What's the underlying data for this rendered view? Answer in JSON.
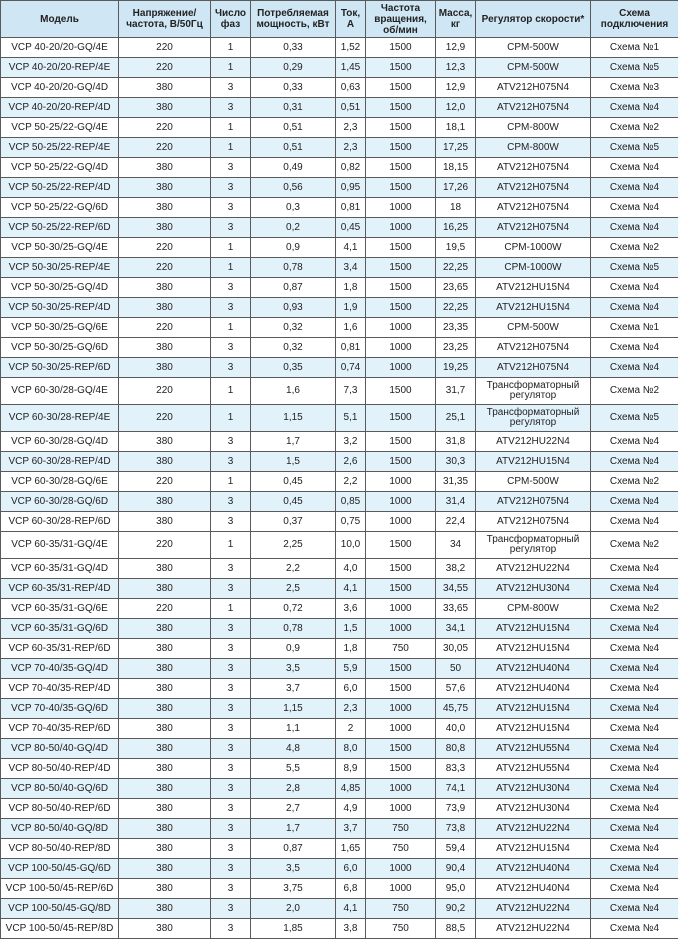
{
  "colors": {
    "header_bg": "#cfe7f5",
    "shaded_row_bg": "#e2f2fb",
    "grid": "#5a5a5a"
  },
  "table": {
    "headers": [
      "Модель",
      "Напряжение/ частота, В/50Гц",
      "Число фаз",
      "Потребляемая мощность, кВт",
      "Ток, А",
      "Частота вращения, об/мин",
      "Масса, кг",
      "Регулятор скорости*",
      "Схема подключения"
    ],
    "rows": [
      {
        "shaded": false,
        "cells": [
          "VCP 40-20/20-GQ/4E",
          "220",
          "1",
          "0,33",
          "1,52",
          "1500",
          "12,9",
          "CPM-500W",
          "Схема №1"
        ]
      },
      {
        "shaded": true,
        "cells": [
          "VCP 40-20/20-REP/4E",
          "220",
          "1",
          "0,29",
          "1,45",
          "1500",
          "12,3",
          "CPM-500W",
          "Схема №5"
        ]
      },
      {
        "shaded": false,
        "cells": [
          "VCP 40-20/20-GQ/4D",
          "380",
          "3",
          "0,33",
          "0,63",
          "1500",
          "12,9",
          "ATV212H075N4",
          "Схема №3"
        ]
      },
      {
        "shaded": true,
        "cells": [
          "VCP 40-20/20-REP/4D",
          "380",
          "3",
          "0,31",
          "0,51",
          "1500",
          "12,0",
          "ATV212H075N4",
          "Схема №4"
        ]
      },
      {
        "shaded": false,
        "cells": [
          "VCP 50-25/22-GQ/4E",
          "220",
          "1",
          "0,51",
          "2,3",
          "1500",
          "18,1",
          "CPM-800W",
          "Схема №2"
        ]
      },
      {
        "shaded": true,
        "cells": [
          "VCP 50-25/22-REP/4E",
          "220",
          "1",
          "0,51",
          "2,3",
          "1500",
          "17,25",
          "CPM-800W",
          "Схема №5"
        ]
      },
      {
        "shaded": false,
        "cells": [
          "VCP 50-25/22-GQ/4D",
          "380",
          "3",
          "0,49",
          "0,82",
          "1500",
          "18,15",
          "ATV212H075N4",
          "Схема №4"
        ]
      },
      {
        "shaded": true,
        "cells": [
          "VCP 50-25/22-REP/4D",
          "380",
          "3",
          "0,56",
          "0,95",
          "1500",
          "17,26",
          "ATV212H075N4",
          "Схема №4"
        ]
      },
      {
        "shaded": false,
        "cells": [
          "VCP 50-25/22-GQ/6D",
          "380",
          "3",
          "0,3",
          "0,81",
          "1000",
          "18",
          "ATV212H075N4",
          "Схема №4"
        ]
      },
      {
        "shaded": true,
        "cells": [
          "VCP 50-25/22-REP/6D",
          "380",
          "3",
          "0,2",
          "0,45",
          "1000",
          "16,25",
          "ATV212H075N4",
          "Схема №4"
        ]
      },
      {
        "shaded": false,
        "cells": [
          "VCP 50-30/25-GQ/4E",
          "220",
          "1",
          "0,9",
          "4,1",
          "1500",
          "19,5",
          "CPM-1000W",
          "Схема №2"
        ]
      },
      {
        "shaded": true,
        "cells": [
          "VCP 50-30/25-REP/4E",
          "220",
          "1",
          "0,78",
          "3,4",
          "1500",
          "22,25",
          "CPM-1000W",
          "Схема №5"
        ]
      },
      {
        "shaded": false,
        "cells": [
          "VCP 50-30/25-GQ/4D",
          "380",
          "3",
          "0,87",
          "1,8",
          "1500",
          "23,65",
          "ATV212HU15N4",
          "Схема №4"
        ]
      },
      {
        "shaded": true,
        "cells": [
          "VCP 50-30/25-REP/4D",
          "380",
          "3",
          "0,93",
          "1,9",
          "1500",
          "22,25",
          "ATV212HU15N4",
          "Схема №4"
        ]
      },
      {
        "shaded": false,
        "cells": [
          "VCP 50-30/25-GQ/6E",
          "220",
          "1",
          "0,32",
          "1,6",
          "1000",
          "23,35",
          "CPM-500W",
          "Схема №1"
        ]
      },
      {
        "shaded": false,
        "cells": [
          "VCP 50-30/25-GQ/6D",
          "380",
          "3",
          "0,32",
          "0,81",
          "1000",
          "23,25",
          "ATV212H075N4",
          "Схема №4"
        ]
      },
      {
        "shaded": true,
        "cells": [
          "VCP 50-30/25-REP/6D",
          "380",
          "3",
          "0,35",
          "0,74",
          "1000",
          "19,25",
          "ATV212H075N4",
          "Схема №4"
        ]
      },
      {
        "shaded": false,
        "tall": true,
        "cells": [
          "VCP 60-30/28-GQ/4E",
          "220",
          "1",
          "1,6",
          "7,3",
          "1500",
          "31,7",
          "Трансформаторный регулятор",
          "Схема №2"
        ]
      },
      {
        "shaded": true,
        "tall": true,
        "cells": [
          "VCP 60-30/28-REP/4E",
          "220",
          "1",
          "1,15",
          "5,1",
          "1500",
          "25,1",
          "Трансформаторный регулятор",
          "Схема №5"
        ]
      },
      {
        "shaded": false,
        "cells": [
          "VCP 60-30/28-GQ/4D",
          "380",
          "3",
          "1,7",
          "3,2",
          "1500",
          "31,8",
          "ATV212HU22N4",
          "Схема №4"
        ]
      },
      {
        "shaded": true,
        "cells": [
          "VCP 60-30/28-REP/4D",
          "380",
          "3",
          "1,5",
          "2,6",
          "1500",
          "30,3",
          "ATV212HU15N4",
          "Схема №4"
        ]
      },
      {
        "shaded": false,
        "cells": [
          "VCP 60-30/28-GQ/6E",
          "220",
          "1",
          "0,45",
          "2,2",
          "1000",
          "31,35",
          "CPM-500W",
          "Схема №2"
        ]
      },
      {
        "shaded": true,
        "cells": [
          "VCP 60-30/28-GQ/6D",
          "380",
          "3",
          "0,45",
          "0,85",
          "1000",
          "31,4",
          "ATV212H075N4",
          "Схема №4"
        ]
      },
      {
        "shaded": false,
        "cells": [
          "VCP 60-30/28-REP/6D",
          "380",
          "3",
          "0,37",
          "0,75",
          "1000",
          "22,4",
          "ATV212H075N4",
          "Схема №4"
        ]
      },
      {
        "shaded": false,
        "tall": true,
        "cells": [
          "VCP 60-35/31-GQ/4E",
          "220",
          "1",
          "2,25",
          "10,0",
          "1500",
          "34",
          "Трансформаторный регулятор",
          "Схема №2"
        ]
      },
      {
        "shaded": false,
        "cells": [
          "VCP 60-35/31-GQ/4D",
          "380",
          "3",
          "2,2",
          "4,0",
          "1500",
          "38,2",
          "ATV212HU22N4",
          "Схема №4"
        ]
      },
      {
        "shaded": true,
        "cells": [
          "VCP 60-35/31-REP/4D",
          "380",
          "3",
          "2,5",
          "4,1",
          "1500",
          "34,55",
          "ATV212HU30N4",
          "Схема №4"
        ]
      },
      {
        "shaded": false,
        "cells": [
          "VCP 60-35/31-GQ/6E",
          "220",
          "1",
          "0,72",
          "3,6",
          "1000",
          "33,65",
          "CPM-800W",
          "Схема №2"
        ]
      },
      {
        "shaded": true,
        "cells": [
          "VCP 60-35/31-GQ/6D",
          "380",
          "3",
          "0,78",
          "1,5",
          "1000",
          "34,1",
          "ATV212HU15N4",
          "Схема №4"
        ]
      },
      {
        "shaded": false,
        "cells": [
          "VCP 60-35/31-REP/6D",
          "380",
          "3",
          "0,9",
          "1,8",
          "750",
          "30,05",
          "ATV212HU15N4",
          "Схема №4"
        ]
      },
      {
        "shaded": true,
        "cells": [
          "VCP 70-40/35-GQ/4D",
          "380",
          "3",
          "3,5",
          "5,9",
          "1500",
          "50",
          "ATV212HU40N4",
          "Схема №4"
        ]
      },
      {
        "shaded": false,
        "cells": [
          "VCP 70-40/35-REP/4D",
          "380",
          "3",
          "3,7",
          "6,0",
          "1500",
          "57,6",
          "ATV212HU40N4",
          "Схема №4"
        ]
      },
      {
        "shaded": true,
        "cells": [
          "VCP 70-40/35-GQ/6D",
          "380",
          "3",
          "1,15",
          "2,3",
          "1000",
          "45,75",
          "ATV212HU15N4",
          "Схема №4"
        ]
      },
      {
        "shaded": false,
        "cells": [
          "VCP 70-40/35-REP/6D",
          "380",
          "3",
          "1,1",
          "2",
          "1000",
          "40,0",
          "ATV212HU15N4",
          "Схема №4"
        ]
      },
      {
        "shaded": true,
        "cells": [
          "VCP 80-50/40-GQ/4D",
          "380",
          "3",
          "4,8",
          "8,0",
          "1500",
          "80,8",
          "ATV212HU55N4",
          "Схема №4"
        ]
      },
      {
        "shaded": false,
        "cells": [
          "VCP 80-50/40-REP/4D",
          "380",
          "3",
          "5,5",
          "8,9",
          "1500",
          "83,3",
          "ATV212HU55N4",
          "Схема №4"
        ]
      },
      {
        "shaded": true,
        "cells": [
          "VCP 80-50/40-GQ/6D",
          "380",
          "3",
          "2,8",
          "4,85",
          "1000",
          "74,1",
          "ATV212HU30N4",
          "Схема №4"
        ]
      },
      {
        "shaded": false,
        "cells": [
          "VCP 80-50/40-REP/6D",
          "380",
          "3",
          "2,7",
          "4,9",
          "1000",
          "73,9",
          "ATV212HU30N4",
          "Схема №4"
        ]
      },
      {
        "shaded": true,
        "cells": [
          "VCP 80-50/40-GQ/8D",
          "380",
          "3",
          "1,7",
          "3,7",
          "750",
          "73,8",
          "ATV212HU22N4",
          "Схема №4"
        ]
      },
      {
        "shaded": false,
        "cells": [
          "VCP 80-50/40-REP/8D",
          "380",
          "3",
          "0,87",
          "1,65",
          "750",
          "59,4",
          "ATV212HU15N4",
          "Схема №4"
        ]
      },
      {
        "shaded": true,
        "cells": [
          "VCP 100-50/45-GQ/6D",
          "380",
          "3",
          "3,5",
          "6,0",
          "1000",
          "90,4",
          "ATV212HU40N4",
          "Схема №4"
        ]
      },
      {
        "shaded": false,
        "cells": [
          "VCP 100-50/45-REP/6D",
          "380",
          "3",
          "3,75",
          "6,8",
          "1000",
          "95,0",
          "ATV212HU40N4",
          "Схема №4"
        ]
      },
      {
        "shaded": true,
        "cells": [
          "VCP 100-50/45-GQ/8D",
          "380",
          "3",
          "2,0",
          "4,1",
          "750",
          "90,2",
          "ATV212HU22N4",
          "Схема №4"
        ]
      },
      {
        "shaded": false,
        "cells": [
          "VCP 100-50/45-REP/8D",
          "380",
          "3",
          "1,85",
          "3,8",
          "750",
          "88,5",
          "ATV212HU22N4",
          "Схема №4"
        ]
      }
    ]
  }
}
